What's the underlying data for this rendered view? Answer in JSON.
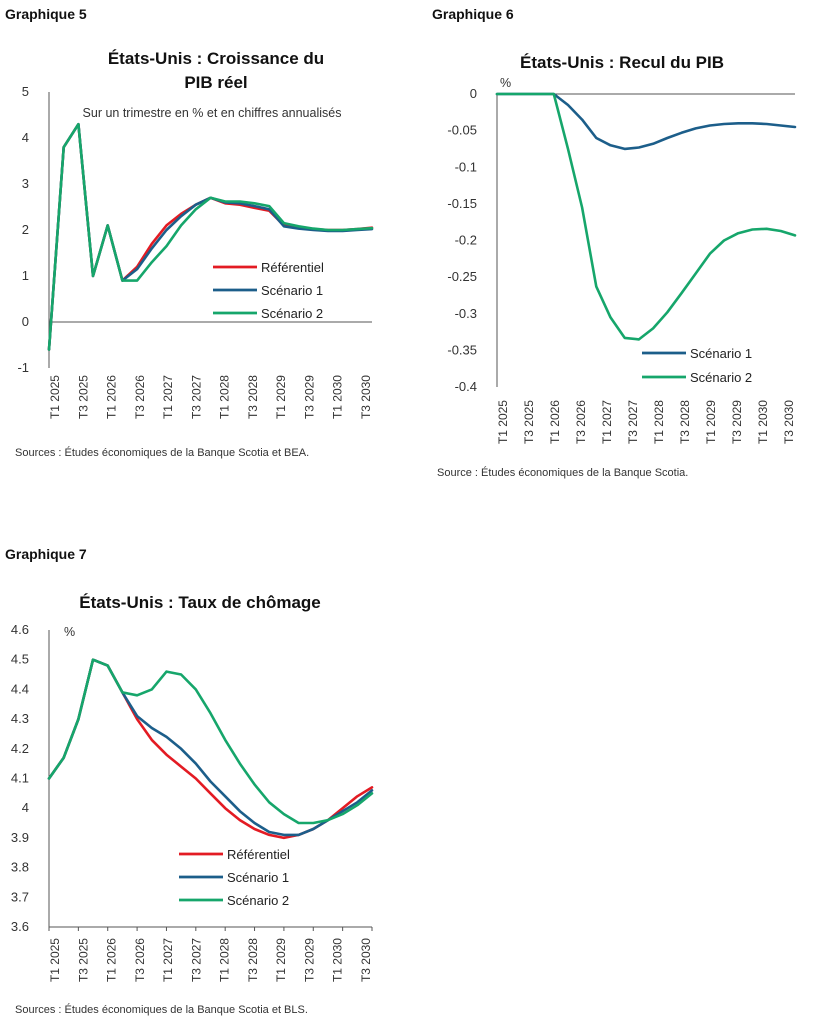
{
  "chart_data": [
    {
      "caption": "Graphique 5",
      "type": "line",
      "title": [
        "États-Unis : Croissance du",
        "PIB réel"
      ],
      "subtitle": "Sur un trimestre en % et en chiffres annualisés",
      "unit": "",
      "source": "Sources : Études économiques de la Banque Scotia et BEA.",
      "tick_labels": [
        "T1 2025",
        "T3 2025",
        "T1 2026",
        "T3 2026",
        "T1 2027",
        "T3 2027",
        "T1 2028",
        "T3 2028",
        "T1 2029",
        "T3 2029",
        "T1 2030",
        "T3 2030"
      ],
      "ylim": [
        -1,
        5
      ],
      "yticks": [
        -1,
        0,
        1,
        2,
        3,
        4,
        5
      ],
      "grid": false,
      "legend_position": "middle-right",
      "colors": {
        "Référentiel": "#e31b23",
        "Scénario 1": "#1c5e8a",
        "Scénario 2": "#16a66b"
      },
      "series": [
        {
          "name": "Référentiel",
          "values": [
            -0.6,
            3.8,
            4.3,
            1.0,
            2.1,
            0.9,
            1.2,
            1.7,
            2.1,
            2.35,
            2.55,
            2.7,
            2.58,
            2.55,
            2.48,
            2.42,
            2.1,
            2.05,
            2.02,
            2.0,
            2.0,
            2.02,
            2.05
          ]
        },
        {
          "name": "Scénario 1",
          "values": [
            -0.6,
            3.8,
            4.3,
            1.0,
            2.1,
            0.9,
            1.15,
            1.6,
            2.0,
            2.3,
            2.55,
            2.7,
            2.6,
            2.58,
            2.52,
            2.45,
            2.08,
            2.03,
            2.0,
            1.98,
            1.98,
            2.0,
            2.02
          ]
        },
        {
          "name": "Scénario 2",
          "values": [
            -0.6,
            3.8,
            4.3,
            1.0,
            2.1,
            0.9,
            0.9,
            1.3,
            1.65,
            2.1,
            2.45,
            2.7,
            2.62,
            2.62,
            2.58,
            2.52,
            2.15,
            2.08,
            2.03,
            2.0,
            2.0,
            2.02,
            2.04
          ]
        }
      ]
    },
    {
      "caption": "Graphique 6",
      "type": "line",
      "title": [
        "États-Unis : Recul du PIB"
      ],
      "subtitle": "",
      "unit": "%",
      "source": "Source : Études économiques de la Banque Scotia.",
      "tick_labels": [
        "T1 2025",
        "T3 2025",
        "T1 2026",
        "T3 2026",
        "T1 2027",
        "T3 2027",
        "T1 2028",
        "T3 2028",
        "T1 2029",
        "T3 2029",
        "T1 2030",
        "T3 2030"
      ],
      "ylim": [
        -0.4,
        0
      ],
      "yticks": [
        0,
        -0.05,
        -0.1,
        -0.15,
        -0.2,
        -0.25,
        -0.3,
        -0.35,
        -0.4
      ],
      "grid": false,
      "legend_position": "bottom-right",
      "colors": {
        "Scénario 1": "#1c5e8a",
        "Scénario 2": "#16a66b"
      },
      "series": [
        {
          "name": "Scénario 1",
          "values": [
            0,
            0,
            0,
            0,
            0,
            -0.015,
            -0.035,
            -0.06,
            -0.07,
            -0.075,
            -0.073,
            -0.068,
            -0.06,
            -0.053,
            -0.047,
            -0.043,
            -0.041,
            -0.04,
            -0.04,
            -0.041,
            -0.043,
            -0.045
          ]
        },
        {
          "name": "Scénario 2",
          "values": [
            0,
            0,
            0,
            0,
            0,
            -0.075,
            -0.155,
            -0.263,
            -0.305,
            -0.333,
            -0.335,
            -0.32,
            -0.298,
            -0.272,
            -0.245,
            -0.218,
            -0.2,
            -0.19,
            -0.185,
            -0.184,
            -0.187,
            -0.193
          ]
        }
      ]
    },
    {
      "caption": "Graphique 7",
      "type": "line",
      "title": [
        "États-Unis : Taux de chômage"
      ],
      "subtitle": "",
      "unit": "%",
      "source": "Sources : Études économiques de la Banque Scotia et BLS.",
      "tick_labels": [
        "T1 2025",
        "T3 2025",
        "T1 2026",
        "T3 2026",
        "T1 2027",
        "T3 2027",
        "T1 2028",
        "T3 2028",
        "T1 2029",
        "T3 2029",
        "T1 2030",
        "T3 2030"
      ],
      "ylim": [
        3.6,
        4.6
      ],
      "yticks": [
        4.6,
        4.5,
        4.4,
        4.3,
        4.2,
        4.1,
        4,
        3.9,
        3.8,
        3.7,
        3.6
      ],
      "grid": false,
      "legend_position": "bottom-center",
      "colors": {
        "Référentiel": "#e31b23",
        "Scénario 1": "#1c5e8a",
        "Scénario 2": "#16a66b"
      },
      "series": [
        {
          "name": "Référentiel",
          "values": [
            4.1,
            4.17,
            4.3,
            4.5,
            4.48,
            4.39,
            4.3,
            4.23,
            4.18,
            4.14,
            4.1,
            4.05,
            4.0,
            3.96,
            3.93,
            3.91,
            3.9,
            3.91,
            3.93,
            3.96,
            4.0,
            4.04,
            4.07
          ]
        },
        {
          "name": "Scénario 1",
          "values": [
            4.1,
            4.17,
            4.3,
            4.5,
            4.48,
            4.39,
            4.31,
            4.27,
            4.24,
            4.2,
            4.15,
            4.09,
            4.04,
            3.99,
            3.95,
            3.92,
            3.91,
            3.91,
            3.93,
            3.96,
            3.99,
            4.02,
            4.06
          ]
        },
        {
          "name": "Scénario 2",
          "values": [
            4.1,
            4.17,
            4.3,
            4.5,
            4.48,
            4.39,
            4.38,
            4.4,
            4.46,
            4.45,
            4.4,
            4.32,
            4.23,
            4.15,
            4.08,
            4.02,
            3.98,
            3.95,
            3.95,
            3.96,
            3.98,
            4.01,
            4.05
          ]
        }
      ]
    }
  ]
}
